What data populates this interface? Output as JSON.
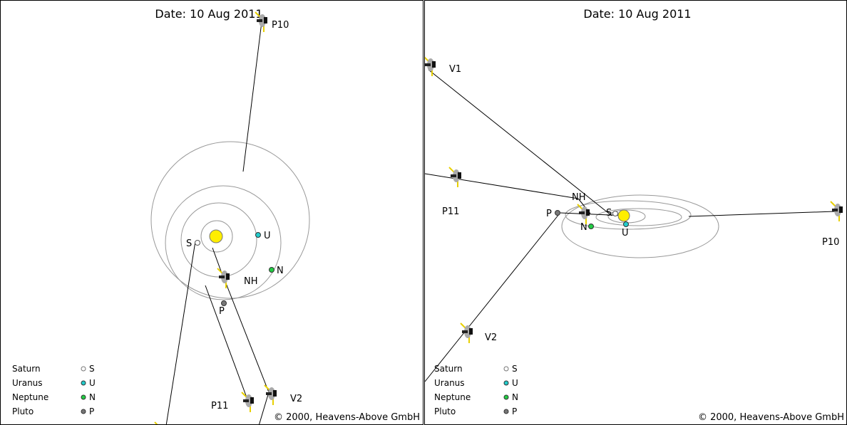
{
  "left": {
    "date_label": "Date: 10 Aug 2011",
    "copyright": "© 2000, Heavens-Above GmbH",
    "labels": {
      "saturn": "S",
      "uranus": "U",
      "neptune": "N",
      "pluto": "P",
      "new_horizons": "NH",
      "pioneer10": "P10",
      "pioneer11": "P11",
      "voyager2": "V2"
    }
  },
  "right": {
    "date_label": "Date: 10 Aug 2011",
    "copyright": "© 2000, Heavens-Above GmbH",
    "labels": {
      "saturn": "S",
      "uranus": "U",
      "neptune": "N",
      "pluto": "P",
      "new_horizons": "NH",
      "pioneer10": "P10",
      "pioneer11": "P11",
      "voyager1": "V1",
      "voyager2": "V2"
    }
  },
  "legend": {
    "items": [
      {
        "name": "Saturn",
        "symbol": "S",
        "color": "#888888"
      },
      {
        "name": "Uranus",
        "symbol": "U",
        "color": "#22cccc"
      },
      {
        "name": "Neptune",
        "symbol": "N",
        "color": "#22cc44"
      },
      {
        "name": "Pluto",
        "symbol": "P",
        "color": "#777777"
      }
    ]
  },
  "colors": {
    "sun": "#ffee00",
    "orbit": "#999999",
    "path": "#000000",
    "panel": "#ff0000"
  }
}
